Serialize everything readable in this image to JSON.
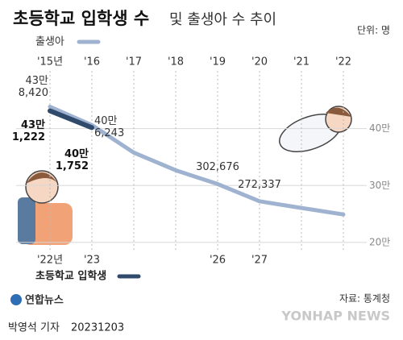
{
  "chart_data": {
    "type": "line",
    "title": "초등학교 입학생 수",
    "title_rest": "및 출생아 수 추이",
    "unit": "단위: 명",
    "ylim": [
      190000,
      500000
    ],
    "yticks": [
      {
        "value": 400000,
        "label": "40만"
      },
      {
        "value": 300000,
        "label": "30만"
      },
      {
        "value": 200000,
        "label": "20만"
      }
    ],
    "grid": true,
    "series": [
      {
        "name": "출생아",
        "color": "#9fb3d1",
        "categories": [
          "'15년",
          "'16",
          "'17",
          "'18",
          "'19",
          "'20",
          "'21",
          "'22"
        ],
        "values": [
          438420,
          406243,
          357800,
          326800,
          302676,
          272337,
          260600,
          249200
        ],
        "value_labels": [
          "43만\n8,420",
          "40만\n6,243",
          null,
          null,
          "302,676",
          "272,337",
          null,
          null
        ]
      },
      {
        "name": "초등학교 입학생",
        "color": "#2f4a6b",
        "categories": [
          "'22년",
          "'23",
          null,
          null,
          "'26",
          "'27",
          null,
          null
        ],
        "values": [
          431222,
          401752,
          null,
          null,
          null,
          null,
          null,
          null
        ],
        "value_labels": [
          "43만\n1,222",
          "40만\n1,752",
          null,
          null,
          null,
          null,
          null,
          null
        ]
      }
    ],
    "source": "자료: 통계청",
    "agency": "연합뉴스",
    "reporter": "박영석 기자",
    "date": "20231203",
    "watermark": "YONHAP NEWS"
  }
}
